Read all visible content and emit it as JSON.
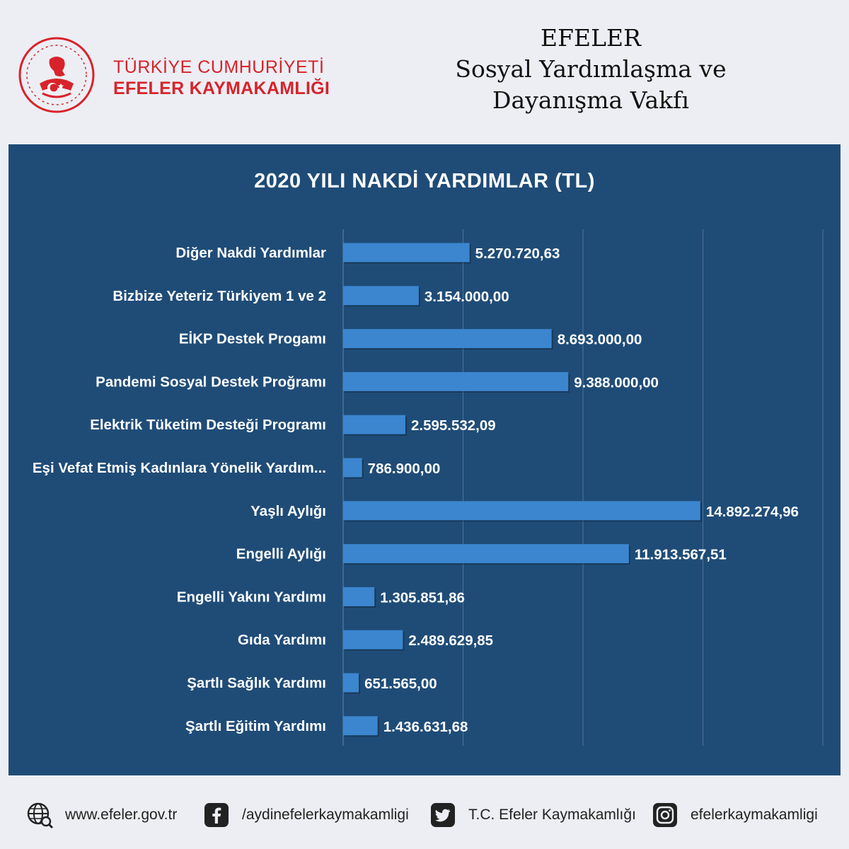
{
  "header": {
    "logo_line1": "TÜRKİYE CUMHURİYETİ",
    "logo_line2": "EFELER KAYMAKAMLIĞI",
    "org_lines": [
      "EFELER",
      "Sosyal Yardımlaşma ve",
      "Dayanışma Vakfı"
    ]
  },
  "colors": {
    "brand_red": "#d8232a",
    "panel_bg": "#1f4c77",
    "bar": "#3b86cf",
    "grid": "#4f7399"
  },
  "chart_data": {
    "type": "bar",
    "orientation": "horizontal",
    "title": "2020 YILI NAKDİ YARDIMLAR (TL)",
    "categories": [
      "Diğer Nakdi Yardımlar",
      "Bizbize Yeteriz Türkiyem 1 ve 2",
      "EİKP Destek Progamı",
      "Pandemi Sosyal Destek Proğramı",
      "Elektrik Tüketim Desteği Programı",
      "Eşi Vefat Etmiş Kadınlara Yönelik Yardım...",
      "Yaşlı Aylığı",
      "Engelli Aylığı",
      "Engelli Yakını Yardımı",
      "Gıda Yardımı",
      "Şartlı Sağlık Yardımı",
      "Şartlı Eğitim Yardımı"
    ],
    "values": [
      5270720.63,
      3154000.0,
      8693000.0,
      9388000.0,
      2595532.09,
      786900.0,
      14892274.96,
      11913567.51,
      1305851.86,
      2489629.85,
      651565.0,
      1436631.68
    ],
    "value_labels": [
      "5.270.720,63",
      "3.154.000,00",
      "8.693.000,00",
      "9.388.000,00",
      "2.595.532,09",
      "786.900,00",
      "14.892.274,96",
      "11.913.567,51",
      "1.305.851,86",
      "2.489.629,85",
      "651.565,00",
      "1.436.631,68"
    ],
    "xlim": [
      0,
      20000000
    ],
    "x_gridlines": [
      0,
      5000000,
      10000000,
      15000000,
      20000000
    ],
    "grid": true,
    "legend": "none"
  },
  "footer": {
    "website": "www.efeler.gov.tr",
    "facebook": "/aydinefelerkaymakamligi",
    "twitter": "T.C. Efeler Kaymakamlığı",
    "instagram": "efelerkaymakamligi",
    "icons": [
      "globe-search-icon",
      "facebook-icon",
      "twitter-icon",
      "instagram-icon"
    ]
  }
}
